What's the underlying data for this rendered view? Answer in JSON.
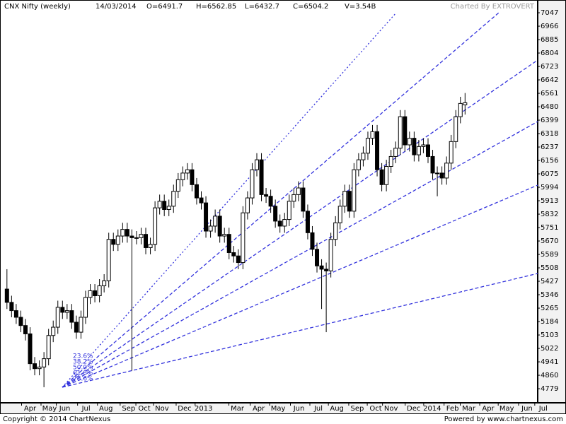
{
  "chart_data": {
    "type": "candlestick",
    "title": "CNX Nifty (weekly)",
    "info": [
      "14/03/2014",
      "O=6491.7",
      "H=6562.85",
      "L=6432.7",
      "C=6504.2",
      "V=3.54B"
    ],
    "watermark": "Charted By EXTROVERT",
    "footer_left": "Copyright © 2014 ChartNexus",
    "footer_right": "Powered by www.chartnexus.com",
    "fan_labels": [
      "23.6%",
      "38.2%",
      "50.0%",
      "61.8%",
      "78.6%"
    ],
    "up_color": "#ffffff",
    "down_color": "#000000",
    "x": [
      0,
      1,
      2,
      3,
      4,
      5,
      6,
      7,
      8,
      9,
      10,
      11,
      12,
      13,
      14,
      15,
      16,
      17,
      18,
      19,
      20,
      21,
      22,
      23,
      24,
      25,
      26,
      27,
      28,
      29,
      30,
      31,
      32,
      33,
      34,
      35,
      36,
      37,
      38,
      39,
      40,
      41,
      42,
      43,
      44,
      45,
      46,
      47,
      48,
      49,
      50,
      51,
      52,
      53,
      54,
      55,
      56,
      57,
      58,
      59,
      60,
      61,
      62,
      63,
      64,
      65,
      66,
      67,
      68,
      69,
      70,
      71,
      72,
      73,
      74,
      75,
      76,
      77,
      78,
      79,
      80,
      81,
      82,
      83,
      84,
      85,
      86,
      87,
      88,
      89,
      90,
      91,
      92,
      93,
      94,
      95,
      96,
      97,
      98,
      99
    ],
    "open": [
      5380,
      5300,
      5250,
      5210,
      5160,
      5110,
      4930,
      4900,
      4910,
      4960,
      5100,
      5150,
      5270,
      5240,
      5250,
      5180,
      5120,
      5210,
      5330,
      5370,
      5340,
      5400,
      5430,
      5680,
      5650,
      5700,
      5740,
      5700,
      5690,
      5690,
      5710,
      5630,
      5650,
      5870,
      5910,
      5860,
      5880,
      5970,
      6040,
      6080,
      6100,
      6010,
      5930,
      5900,
      5730,
      5760,
      5820,
      5700,
      5710,
      5600,
      5580,
      5540,
      5840,
      5930,
      6100,
      6160,
      5950,
      5940,
      5880,
      5790,
      5760,
      5800,
      5910,
      5950,
      5990,
      5850,
      5720,
      5620,
      5520,
      5500,
      5490,
      5680,
      5780,
      5880,
      5970,
      5850,
      6100,
      6160,
      6200,
      6290,
      6330,
      6100,
      6010,
      6120,
      6180,
      6230,
      6420,
      6250,
      6290,
      6190,
      6240,
      6250,
      6180,
      6080,
      6080,
      6050,
      6140,
      6270,
      6420,
      6491.7
    ],
    "high": [
      5500,
      5340,
      5290,
      5250,
      5200,
      5150,
      4970,
      4950,
      5000,
      5140,
      5190,
      5310,
      5310,
      5290,
      5290,
      5220,
      5250,
      5370,
      5410,
      5410,
      5440,
      5470,
      5720,
      5720,
      5740,
      5780,
      5780,
      5740,
      5730,
      5750,
      5750,
      5690,
      5910,
      5950,
      5950,
      5920,
      6010,
      6080,
      6120,
      6140,
      6140,
      6050,
      5970,
      5940,
      5800,
      5860,
      5860,
      5750,
      5750,
      5640,
      5620,
      5880,
      5970,
      6140,
      6200,
      6200,
      5990,
      5980,
      5920,
      5830,
      5840,
      5950,
      5990,
      6030,
      6030,
      5890,
      5760,
      5660,
      5560,
      5540,
      5720,
      5820,
      5920,
      6010,
      6010,
      6140,
      6200,
      6240,
      6330,
      6370,
      6370,
      6140,
      6160,
      6220,
      6270,
      6460,
      6460,
      6330,
      6330,
      6280,
      6290,
      6290,
      6220,
      6120,
      6120,
      6180,
      6310,
      6460,
      6540,
      6562.85
    ],
    "low": [
      5260,
      5210,
      5170,
      5120,
      5070,
      4890,
      4860,
      4860,
      4788,
      4920,
      5060,
      5110,
      5200,
      5200,
      5140,
      5080,
      5080,
      5170,
      5290,
      5300,
      5300,
      5360,
      5390,
      5610,
      5610,
      5660,
      5660,
      4888,
      5650,
      5650,
      5590,
      5590,
      5610,
      5830,
      5820,
      5820,
      5840,
      5930,
      6000,
      6040,
      5970,
      5890,
      5860,
      5690,
      5690,
      5720,
      5660,
      5660,
      5560,
      5540,
      5500,
      5500,
      5800,
      5890,
      6060,
      5910,
      5900,
      5840,
      5750,
      5720,
      5720,
      5760,
      5870,
      5910,
      5810,
      5680,
      5580,
      5480,
      5260,
      5120,
      5450,
      5640,
      5740,
      5840,
      5810,
      5810,
      6060,
      6120,
      6160,
      6250,
      6060,
      5970,
      5970,
      6080,
      6140,
      6190,
      6210,
      6210,
      6150,
      6150,
      6200,
      6140,
      6040,
      5940,
      6010,
      6010,
      6100,
      6230,
      6380,
      6432.7
    ],
    "close": [
      5300,
      5250,
      5210,
      5160,
      5110,
      4930,
      4900,
      4910,
      4960,
      5100,
      5150,
      5270,
      5240,
      5250,
      5180,
      5120,
      5210,
      5330,
      5370,
      5340,
      5400,
      5430,
      5680,
      5650,
      5700,
      5740,
      5700,
      5690,
      5690,
      5710,
      5630,
      5650,
      5870,
      5910,
      5860,
      5880,
      5970,
      6040,
      6080,
      6100,
      6010,
      5930,
      5900,
      5730,
      5760,
      5820,
      5700,
      5710,
      5600,
      5580,
      5540,
      5840,
      5930,
      6100,
      6160,
      5950,
      5940,
      5880,
      5790,
      5760,
      5800,
      5910,
      5950,
      5990,
      5850,
      5720,
      5620,
      5520,
      5500,
      5490,
      5680,
      5780,
      5880,
      5970,
      5850,
      6100,
      6160,
      6200,
      6290,
      6330,
      6100,
      6010,
      6120,
      6180,
      6230,
      6420,
      6250,
      6290,
      6190,
      6240,
      6250,
      6180,
      6080,
      6080,
      6050,
      6140,
      6270,
      6420,
      6500,
      6504.2
    ],
    "xlim": [
      -1.5,
      114.7
    ],
    "xticks": [
      {
        "value": 5.0,
        "label": "Apr"
      },
      {
        "value": 9.2,
        "label": "May"
      },
      {
        "value": 12.5,
        "label": "Jun"
      },
      {
        "value": 17.1,
        "label": "Jul"
      },
      {
        "value": 21.4,
        "label": "Aug"
      },
      {
        "value": 26.3,
        "label": "Sep"
      },
      {
        "value": 29.7,
        "label": "Oct"
      },
      {
        "value": 33.5,
        "label": "Nov"
      },
      {
        "value": 38.4,
        "label": "Dec"
      },
      {
        "value": 42.5,
        "label": "2013"
      },
      {
        "value": 49.8,
        "label": "Mar"
      },
      {
        "value": 54.4,
        "label": "Apr"
      },
      {
        "value": 58.6,
        "label": "May"
      },
      {
        "value": 63.1,
        "label": "Jun"
      },
      {
        "value": 67.3,
        "label": "Jul"
      },
      {
        "value": 71.3,
        "label": "Aug"
      },
      {
        "value": 75.7,
        "label": "Sep"
      },
      {
        "value": 79.7,
        "label": "Oct"
      },
      {
        "value": 83.0,
        "label": "Nov"
      },
      {
        "value": 87.9,
        "label": "Dec"
      },
      {
        "value": 91.9,
        "label": "2014"
      },
      {
        "value": 96.3,
        "label": "Feb"
      },
      {
        "value": 99.8,
        "label": "Mar"
      },
      {
        "value": 104.0,
        "label": "Apr"
      },
      {
        "value": 108.0,
        "label": "May"
      },
      {
        "value": 112.4,
        "label": "Jun"
      },
      {
        "value": 115.9,
        "label": "Jul"
      }
    ],
    "ylim": [
      4694,
      7124
    ],
    "yticks": [
      4779,
      4860,
      4941,
      5022,
      5103,
      5184,
      5265,
      5346,
      5427,
      5508,
      5589,
      5670,
      5751,
      5832,
      5913,
      5994,
      6075,
      6156,
      6237,
      6318,
      6399,
      6480,
      6561,
      6642,
      6723,
      6804,
      6885,
      6966,
      7047
    ]
  }
}
